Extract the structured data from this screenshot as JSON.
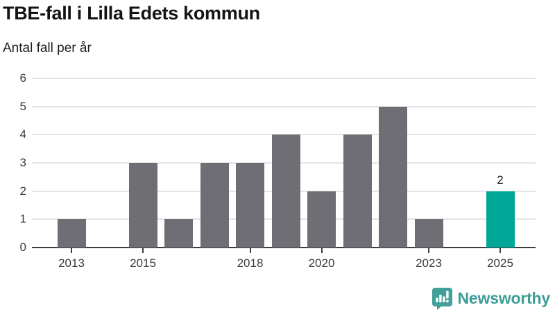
{
  "header": {
    "title": "TBE-fall i Lilla Edets kommun",
    "subtitle": "Antal fall per år"
  },
  "chart_data": {
    "type": "bar",
    "title": "TBE-fall i Lilla Edets kommun",
    "subtitle": "Antal fall per år",
    "ylabel": "Antal fall per år",
    "xlabel": "",
    "categories": [
      2013,
      2014,
      2015,
      2016,
      2017,
      2018,
      2019,
      2020,
      2021,
      2022,
      2023,
      2024,
      2025
    ],
    "values": [
      1,
      0,
      3,
      1,
      3,
      3,
      4,
      2,
      4,
      5,
      1,
      0,
      2
    ],
    "ylim": [
      0,
      6
    ],
    "yticks": [
      0,
      1,
      2,
      3,
      4,
      5,
      6
    ],
    "xticks_labeled": [
      2013,
      2015,
      2018,
      2020,
      2023,
      2025
    ],
    "grid": true,
    "legend": "none",
    "bar_color": "#6e6e74",
    "gridline_color": "#e4e4e4",
    "highlight": {
      "category": 2025,
      "color": "#00a796"
    },
    "annotations": [
      {
        "category": 2025,
        "text": "2"
      }
    ]
  },
  "footer": {
    "brand": "Newsworthy",
    "brand_color": "#3c9d96"
  }
}
